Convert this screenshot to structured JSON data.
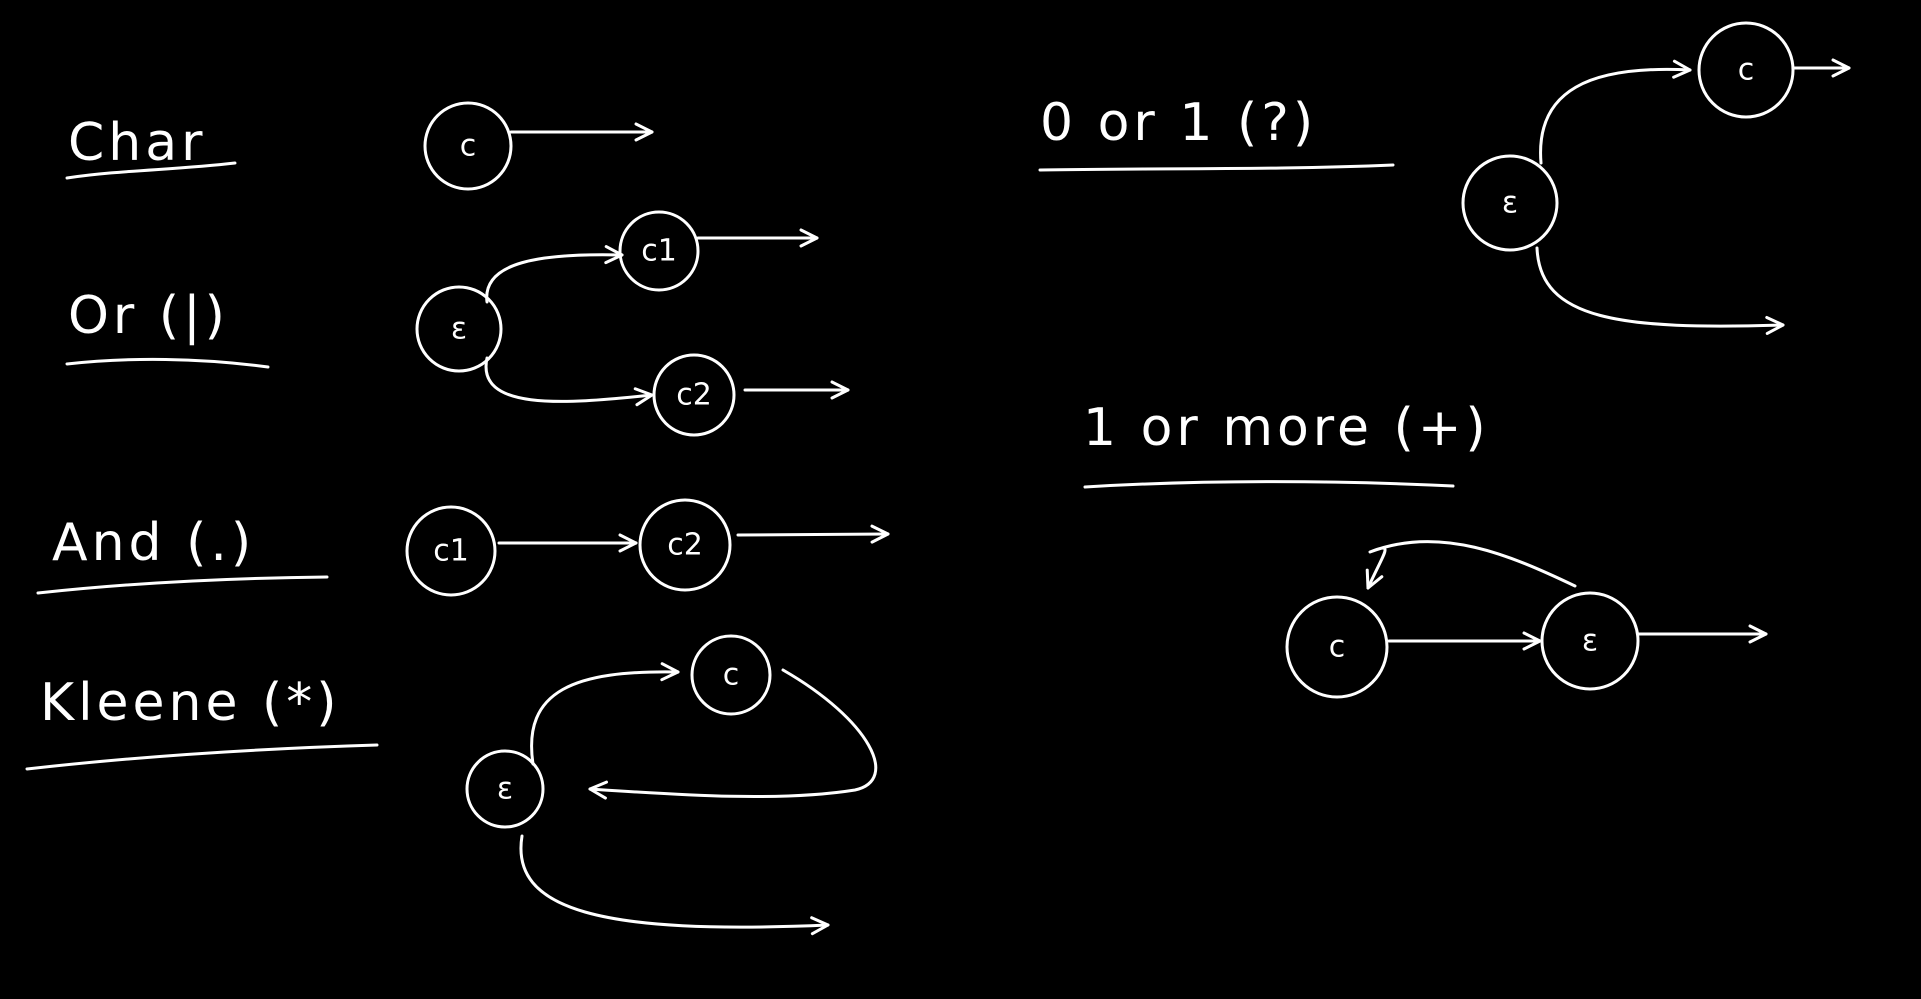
{
  "colors": {
    "background": "#000000",
    "ink": "#ffffff"
  },
  "sections": {
    "char": {
      "label": "Char",
      "node": "c"
    },
    "or": {
      "label": "Or (|)",
      "start": "ε",
      "node1": "c1",
      "node2": "c2"
    },
    "and": {
      "label": "And (.)",
      "node1": "c1",
      "node2": "c2"
    },
    "kleene": {
      "label": "Kleene (*)",
      "start": "ε",
      "node": "c"
    },
    "optional": {
      "label": "0 or 1 (?)",
      "start": "ε",
      "node": "c"
    },
    "plus": {
      "label": "1 or more (+)",
      "node": "c",
      "mid": "ε"
    }
  }
}
